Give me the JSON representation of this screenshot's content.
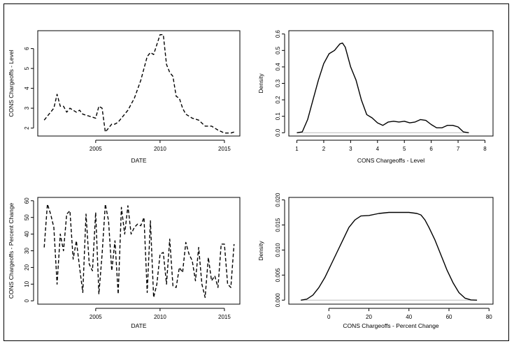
{
  "colors": {
    "line": "#000000",
    "baseline": "#bbbbbb",
    "frame": "#000000"
  },
  "chart_data": [
    {
      "id": "p1",
      "type": "line",
      "style": "dashed",
      "title": "",
      "xlabel": "DATE",
      "ylabel": "CONS Chargeoffs - Level",
      "xlim": [
        2000.5,
        2016.2
      ],
      "ylim": [
        1.6,
        6.9
      ],
      "xticks": [
        2005,
        2010,
        2015
      ],
      "xtick_labels": [
        "2005",
        "2010",
        "2015"
      ],
      "yticks": [
        2,
        3,
        4,
        5,
        6
      ],
      "ytick_labels": [
        "2",
        "3",
        "4",
        "5",
        "6"
      ],
      "x": [
        2001.0,
        2001.75,
        2002.0,
        2002.25,
        2002.5,
        2002.75,
        2003.0,
        2003.25,
        2003.5,
        2003.75,
        2004.0,
        2004.5,
        2005.0,
        2005.25,
        2005.5,
        2005.75,
        2006.0,
        2006.25,
        2006.5,
        2006.75,
        2007.0,
        2007.5,
        2008.0,
        2008.5,
        2009.0,
        2009.25,
        2009.5,
        2009.75,
        2010.0,
        2010.25,
        2010.5,
        2010.75,
        2011.0,
        2011.25,
        2011.5,
        2011.75,
        2012.0,
        2012.5,
        2013.0,
        2013.5,
        2014.0,
        2014.5,
        2015.0,
        2015.5,
        2015.75
      ],
      "y": [
        2.4,
        3.0,
        3.7,
        3.1,
        3.1,
        2.8,
        3.0,
        2.9,
        2.8,
        2.9,
        2.7,
        2.6,
        2.5,
        3.1,
        3.0,
        1.8,
        2.0,
        2.2,
        2.2,
        2.3,
        2.5,
        2.9,
        3.5,
        4.4,
        5.6,
        5.8,
        5.7,
        6.2,
        6.7,
        6.7,
        5.2,
        4.8,
        4.6,
        3.6,
        3.5,
        3.0,
        2.7,
        2.5,
        2.4,
        2.1,
        2.1,
        1.9,
        1.75,
        1.75,
        1.8
      ]
    },
    {
      "id": "p2",
      "type": "line",
      "style": "solid",
      "title": "",
      "xlabel": "CONS Chargeoffs - Level",
      "ylabel": "Density",
      "xlim": [
        0.7,
        8.3
      ],
      "ylim": [
        -0.02,
        0.62
      ],
      "xticks": [
        1,
        2,
        3,
        4,
        5,
        6,
        7,
        8
      ],
      "xtick_labels": [
        "1",
        "2",
        "3",
        "4",
        "5",
        "6",
        "7",
        "8"
      ],
      "yticks": [
        0.0,
        0.1,
        0.2,
        0.3,
        0.4,
        0.5,
        0.6
      ],
      "ytick_labels": [
        "0.0",
        "0.1",
        "0.2",
        "0.3",
        "0.4",
        "0.5",
        "0.6"
      ],
      "baseline": 0,
      "x": [
        1.0,
        1.2,
        1.4,
        1.6,
        1.8,
        2.0,
        2.2,
        2.4,
        2.6,
        2.7,
        2.8,
        3.0,
        3.2,
        3.4,
        3.6,
        3.8,
        4.0,
        4.2,
        4.4,
        4.6,
        4.8,
        5.0,
        5.2,
        5.4,
        5.6,
        5.8,
        6.0,
        6.2,
        6.4,
        6.6,
        6.8,
        7.0,
        7.2,
        7.4
      ],
      "y": [
        0.0,
        0.005,
        0.08,
        0.2,
        0.32,
        0.42,
        0.48,
        0.5,
        0.54,
        0.545,
        0.52,
        0.4,
        0.32,
        0.2,
        0.11,
        0.09,
        0.06,
        0.045,
        0.065,
        0.07,
        0.065,
        0.07,
        0.06,
        0.065,
        0.08,
        0.075,
        0.05,
        0.03,
        0.03,
        0.045,
        0.045,
        0.035,
        0.005,
        0.0
      ]
    },
    {
      "id": "p3",
      "type": "line",
      "style": "dashed",
      "title": "",
      "xlabel": "DATE",
      "ylabel": "CONS Chargeoffs - Percent Change",
      "xlim": [
        2000.5,
        2016.2
      ],
      "ylim": [
        -2,
        62
      ],
      "xticks": [
        2005,
        2010,
        2015
      ],
      "xtick_labels": [
        "2005",
        "2010",
        "2015"
      ],
      "yticks": [
        0,
        10,
        20,
        30,
        40,
        50,
        60
      ],
      "ytick_labels": [
        "0",
        "10",
        "20",
        "30",
        "40",
        "50",
        "60"
      ],
      "x": [
        2001.0,
        2001.25,
        2001.5,
        2001.75,
        2002.0,
        2002.25,
        2002.5,
        2002.75,
        2003.0,
        2003.25,
        2003.5,
        2003.75,
        2004.0,
        2004.25,
        2004.5,
        2004.75,
        2005.0,
        2005.25,
        2005.5,
        2005.75,
        2006.0,
        2006.25,
        2006.5,
        2006.75,
        2007.0,
        2007.25,
        2007.5,
        2007.75,
        2008.0,
        2008.25,
        2008.5,
        2008.75,
        2009.0,
        2009.25,
        2009.5,
        2009.75,
        2010.0,
        2010.25,
        2010.5,
        2010.75,
        2011.0,
        2011.25,
        2011.5,
        2011.75,
        2012.0,
        2012.25,
        2012.5,
        2012.75,
        2013.0,
        2013.25,
        2013.5,
        2013.75,
        2014.0,
        2014.25,
        2014.5,
        2014.75,
        2015.0,
        2015.25,
        2015.5,
        2015.75
      ],
      "y": [
        32,
        58,
        52,
        44,
        10,
        40,
        30,
        52,
        54,
        25,
        36,
        20,
        5,
        52,
        22,
        18,
        53,
        4,
        28,
        58,
        48,
        18,
        36,
        4,
        56,
        40,
        57,
        40,
        44,
        46,
        45,
        50,
        5,
        48,
        2,
        10,
        28,
        29,
        10,
        37,
        9,
        8,
        20,
        17,
        35,
        28,
        24,
        12,
        32,
        10,
        2,
        26,
        12,
        15,
        8,
        34,
        34,
        10,
        8,
        34
      ]
    },
    {
      "id": "p4",
      "type": "line",
      "style": "solid",
      "title": "",
      "xlabel": "CONS Chargeoffs - Percent Change",
      "ylabel": "Density",
      "xlim": [
        -20,
        82
      ],
      "ylim": [
        -0.0008,
        0.0205
      ],
      "xticks": [
        0,
        20,
        40,
        60,
        80
      ],
      "xtick_labels": [
        "0",
        "20",
        "40",
        "60",
        "80"
      ],
      "yticks": [
        0.0,
        0.005,
        0.01,
        0.015,
        0.02
      ],
      "ytick_labels": [
        "0.000",
        "0.005",
        "0.010",
        "0.015",
        "0.020"
      ],
      "baseline": 0,
      "x": [
        -14,
        -11,
        -8,
        -5,
        -2,
        1,
        4,
        7,
        10,
        13,
        16,
        20,
        25,
        30,
        35,
        40,
        44,
        46,
        48,
        50,
        53,
        56,
        59,
        62,
        65,
        68,
        71,
        74
      ],
      "y": [
        0.0,
        0.0002,
        0.001,
        0.0025,
        0.0045,
        0.007,
        0.0095,
        0.012,
        0.0145,
        0.016,
        0.0168,
        0.0169,
        0.0173,
        0.0175,
        0.0175,
        0.0175,
        0.0173,
        0.017,
        0.016,
        0.0145,
        0.012,
        0.009,
        0.006,
        0.0035,
        0.0015,
        0.0004,
        5e-05,
        0.0
      ]
    }
  ]
}
